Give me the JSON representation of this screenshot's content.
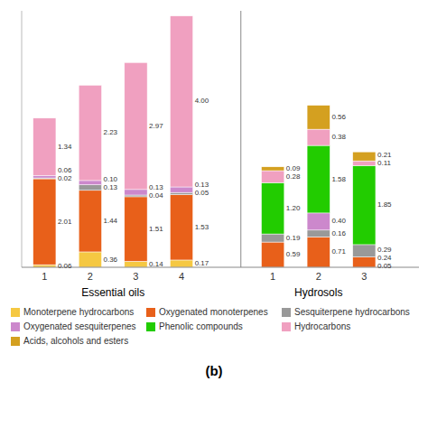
{
  "chart_data": {
    "type": "bar",
    "title": "(b)",
    "stacked": true,
    "data_labels": true,
    "grid": false,
    "legend": "bottom",
    "tick_labels": "x",
    "ylim": [
      0,
      6
    ],
    "categories": [
      "1",
      "2",
      "3",
      "4",
      "1",
      "2",
      "3"
    ],
    "groups": [
      {
        "label": "Essential oils",
        "size": 4
      },
      {
        "label": "Hydrosols",
        "size": 3
      }
    ],
    "series": [
      {
        "name": "Monoterpene hydrocarbons",
        "color": "#f5c842",
        "values": [
          0.06,
          0.36,
          0.14,
          0.17,
          0.0,
          0.0,
          0.0
        ],
        "value_labels": [
          "0.06",
          "0.36",
          "0.14",
          "0.17",
          null,
          null,
          null
        ]
      },
      {
        "name": "Oxygenated monoterpenes",
        "color": "#e8601a",
        "values": [
          2.01,
          1.44,
          1.51,
          1.53,
          0.59,
          0.71,
          0.24
        ],
        "value_labels": [
          "2.01",
          "1.44",
          "1.51",
          "1.53",
          "0.59",
          "0.71",
          "0.24"
        ]
      },
      {
        "name": "Sesquiterpene hydrocarbons",
        "color": "#999999",
        "values": [
          0.02,
          0.13,
          0.04,
          0.05,
          0.19,
          0.16,
          0.29
        ],
        "value_labels": [
          "0.02",
          "0.13",
          "0.04",
          "0.05",
          "0.19",
          "0.16",
          "0.29"
        ]
      },
      {
        "name": "Oxygenated sesquiterpenes",
        "color": "#cc88cc",
        "values": [
          0.06,
          0.1,
          0.13,
          0.13,
          0.0,
          0.4,
          0.0
        ],
        "value_labels": [
          "0.06",
          "0.10",
          "0.13",
          "0.13",
          null,
          "0.40",
          null
        ]
      },
      {
        "name": "Phenolic compounds",
        "color": "#22cc00",
        "values": [
          0.0,
          0.0,
          0.0,
          0.0,
          1.2,
          1.58,
          1.85
        ],
        "value_labels": [
          null,
          null,
          null,
          null,
          "1.20",
          "1.58",
          "1.85"
        ]
      },
      {
        "name": "Hydrocarbons",
        "color": "#f0a0c0",
        "values": [
          1.34,
          2.23,
          2.97,
          4.0,
          0.28,
          0.38,
          0.11
        ],
        "value_labels": [
          "1.34",
          "2.23",
          "2.97",
          "4.00",
          "0.28",
          "0.38",
          "0.11"
        ]
      },
      {
        "name": "Acids, alcohols and esters",
        "color": "#d4a020",
        "values": [
          0.0,
          0.0,
          0.0,
          0.0,
          0.09,
          0.56,
          0.21
        ],
        "value_labels": [
          null,
          null,
          null,
          null,
          "0.09",
          "0.56",
          "0.21"
        ]
      }
    ],
    "annotations": [
      {
        "text": "0.05",
        "x": 6,
        "y": 0.025
      }
    ]
  }
}
